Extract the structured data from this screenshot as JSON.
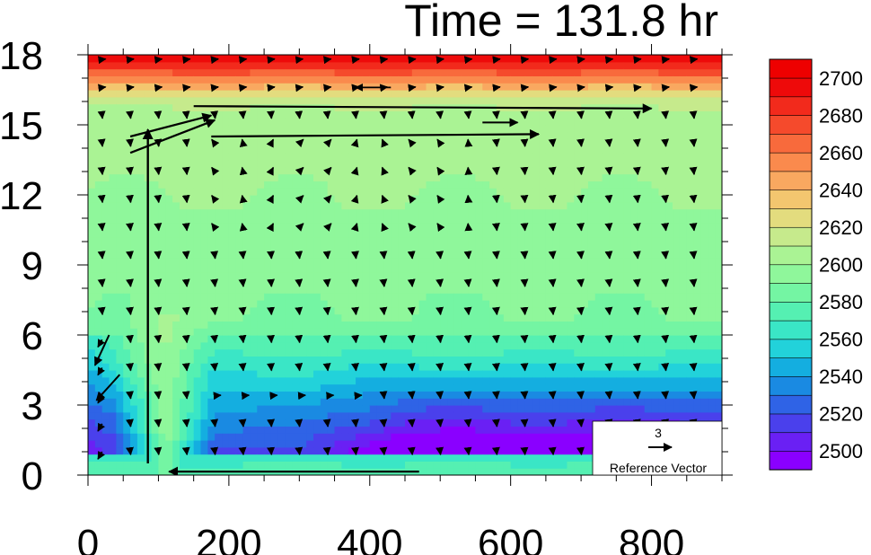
{
  "chart_data": {
    "type": "heatmap",
    "title": "Time = 131.8 hr",
    "xlabel": "",
    "ylabel": "",
    "xlim": [
      0,
      900
    ],
    "ylim": [
      0,
      18
    ],
    "x_ticks": [
      "0",
      "200",
      "400",
      "600",
      "800"
    ],
    "y_ticks": [
      "0",
      "3",
      "6",
      "9",
      "12",
      "15",
      "18"
    ],
    "colorbar": {
      "min": 2490,
      "max": 2710,
      "step": 10,
      "labels": [
        "2500",
        "2520",
        "2540",
        "2560",
        "2580",
        "2600",
        "2620",
        "2640",
        "2660",
        "2680",
        "2700"
      ],
      "colors": [
        "#8a00ff",
        "#6a20f4",
        "#4a40ec",
        "#2f63e6",
        "#1a8ae2",
        "#14aee0",
        "#22d2da",
        "#3ae6c6",
        "#55f0b2",
        "#74f5a3",
        "#8ff79b",
        "#aaf394",
        "#c6ea8c",
        "#e3dc7e",
        "#f3c66f",
        "#f9a860",
        "#fa8a4d",
        "#f86a3c",
        "#f54a2c",
        "#f22a1c",
        "#ee0a0a",
        "#ee0000"
      ]
    },
    "reference_vector": {
      "value": "3",
      "label": "Reference Vector"
    },
    "field_description": "Values decrease from ~2700 at the top (z=18) to ~2500 near the surface (z=1-4) on the right side; column of higher values near x=60-160",
    "colors": {
      "background": "#ffffff",
      "vector": "#000000"
    }
  }
}
